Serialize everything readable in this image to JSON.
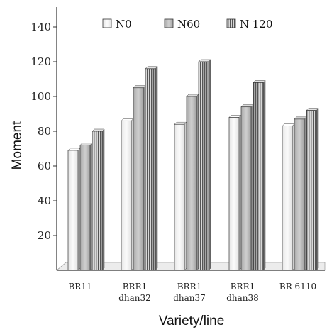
{
  "chart_data": {
    "type": "bar",
    "xlabel": "Variety/line",
    "ylabel": "Moment",
    "ylim": [
      0,
      140
    ],
    "yticks": [
      20,
      40,
      60,
      80,
      100,
      120,
      140
    ],
    "grid": false,
    "legend_position": "top",
    "categories": [
      [
        "BR11"
      ],
      [
        "BRR1",
        "dhan32"
      ],
      [
        "BRR1",
        "dhan37"
      ],
      [
        "BRR1",
        "dhan38"
      ],
      [
        "BR 6110"
      ]
    ],
    "series": [
      {
        "name": "N0",
        "values": [
          69,
          86,
          84,
          88,
          83
        ],
        "style": "plain",
        "color": "#f4f4f4"
      },
      {
        "name": "N60",
        "values": [
          72,
          105,
          100,
          94,
          87
        ],
        "style": "gray",
        "color": "#bdbdbd"
      },
      {
        "name": "N 120",
        "values": [
          80,
          116,
          120,
          108,
          92
        ],
        "style": "striped",
        "color": "#9a9a9a"
      }
    ]
  }
}
